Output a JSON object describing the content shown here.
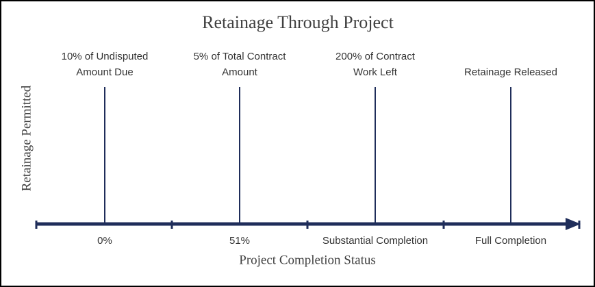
{
  "title": "Retainage Through Project",
  "y_axis_label": "Retainage Permitted",
  "x_axis_label": "Project Completion Status",
  "stages": [
    {
      "label": [
        "10% of Undisputed",
        "Amount Due"
      ],
      "category": "0%"
    },
    {
      "label": [
        "5% of Total Contract",
        "Amount"
      ],
      "category": "51%"
    },
    {
      "label": [
        "200% of Contract",
        "Work Left"
      ],
      "category": "Substantial Completion"
    },
    {
      "label": [
        "Retainage Released"
      ],
      "category": "Full Completion"
    }
  ]
}
